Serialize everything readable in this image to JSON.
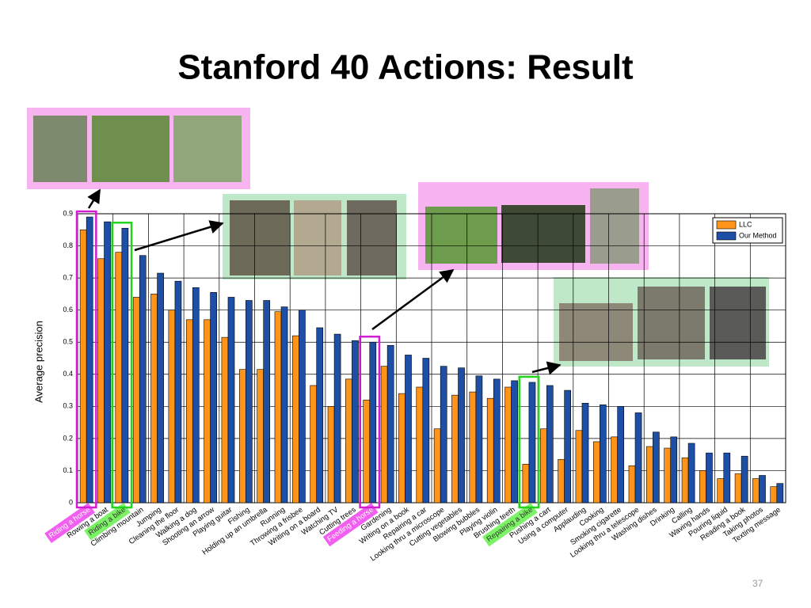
{
  "title": "Stanford 40 Actions: Result",
  "slide_number": "37",
  "chart_data": {
    "type": "bar",
    "ylabel": "Average precision",
    "categories": [
      "Riding a horse",
      "Rowing a boat",
      "Riding a bike",
      "Climbing mountain",
      "Jumping",
      "Cleaning the floor",
      "Walking a dog",
      "Shooting an arrow",
      "Playing guitar",
      "Fishing",
      "Holding up an umbrella",
      "Running",
      "Throwing a frisbee",
      "Writing on a board",
      "Watching TV",
      "Cutting trees",
      "Feeding a horse",
      "Gardening",
      "Writing on a book",
      "Repairing a car",
      "Looking thru a microscope",
      "Cutting vegetables",
      "Blowing bubbles",
      "Playing violin",
      "Brushing teeth",
      "Repairing a bike",
      "Pushing a cart",
      "Using a computer",
      "Applauding",
      "Cooking",
      "Smoking cigarette",
      "Looking thru a telescope",
      "Washing dishes",
      "Drinking",
      "Calling",
      "Waving hands",
      "Pouring liquid",
      "Reading a book",
      "Taking photos",
      "Texting message"
    ],
    "series": [
      {
        "name": "LLC",
        "color": "#ff9419",
        "values": [
          0.85,
          0.76,
          0.78,
          0.64,
          0.65,
          0.6,
          0.57,
          0.57,
          0.515,
          0.415,
          0.415,
          0.595,
          0.52,
          0.365,
          0.3,
          0.385,
          0.32,
          0.425,
          0.34,
          0.36,
          0.23,
          0.335,
          0.345,
          0.325,
          0.36,
          0.12,
          0.23,
          0.135,
          0.225,
          0.19,
          0.205,
          0.115,
          0.175,
          0.17,
          0.14,
          0.1,
          0.075,
          0.09,
          0.075,
          0.05
        ]
      },
      {
        "name": "Our Method",
        "color": "#1d4fa6",
        "values": [
          0.89,
          0.875,
          0.855,
          0.77,
          0.715,
          0.69,
          0.67,
          0.655,
          0.64,
          0.63,
          0.63,
          0.61,
          0.6,
          0.545,
          0.525,
          0.505,
          0.5,
          0.49,
          0.46,
          0.45,
          0.425,
          0.42,
          0.395,
          0.385,
          0.38,
          0.375,
          0.365,
          0.35,
          0.31,
          0.305,
          0.3,
          0.28,
          0.22,
          0.205,
          0.185,
          0.155,
          0.155,
          0.145,
          0.085,
          0.06
        ]
      }
    ],
    "ylim": [
      0,
      0.9
    ],
    "yticks": [
      0,
      0.1,
      0.2,
      0.3,
      0.4,
      0.5,
      0.6,
      0.7,
      0.8,
      0.9
    ],
    "grid": true,
    "legend": "upper right"
  }
}
